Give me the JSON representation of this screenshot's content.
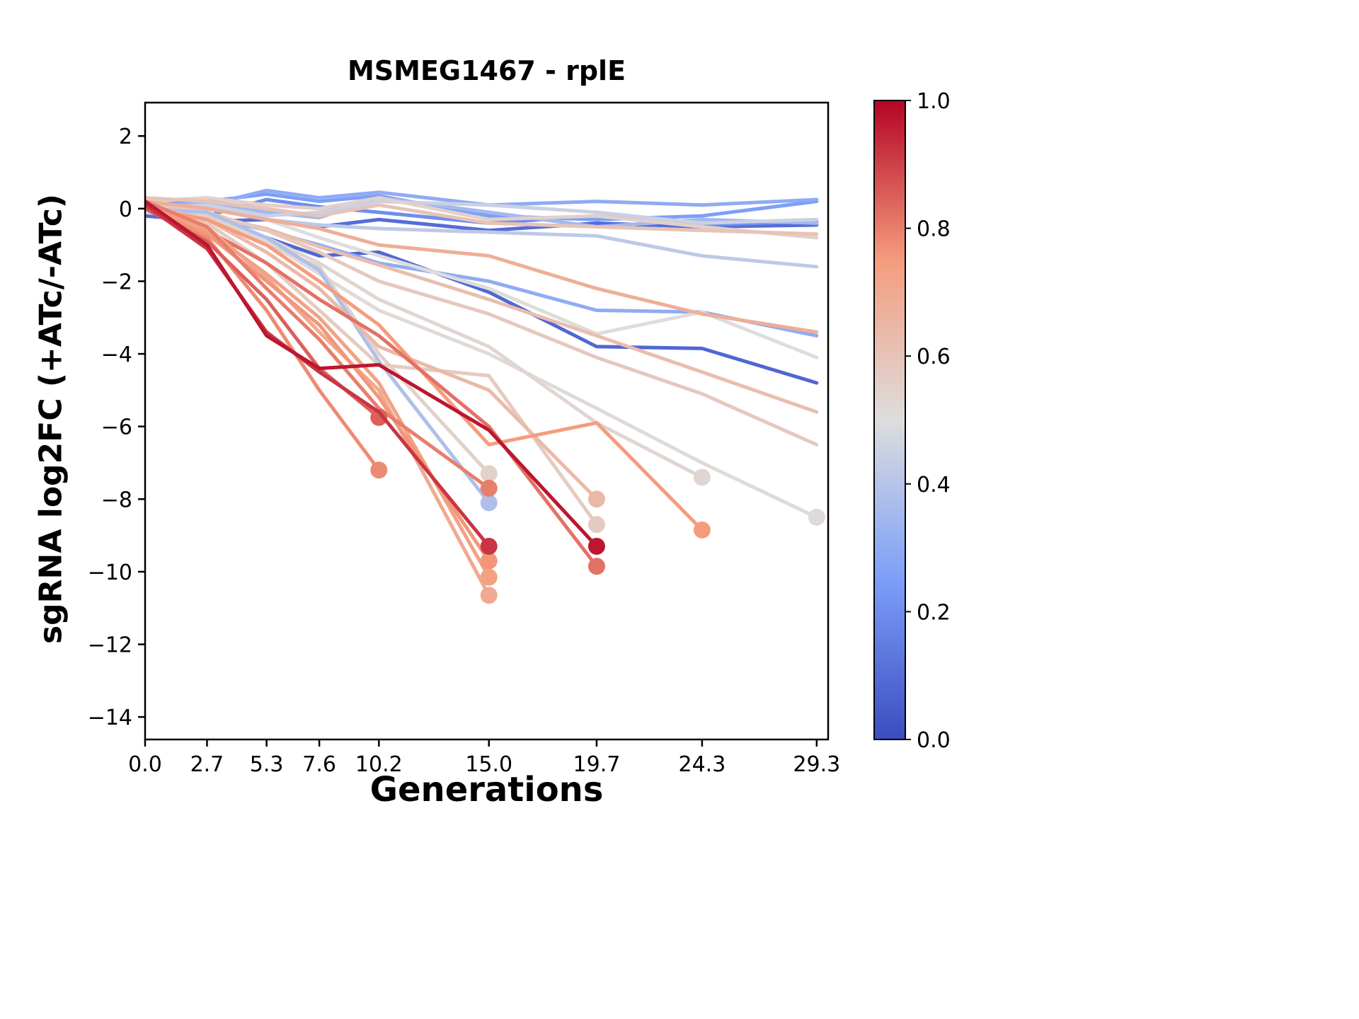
{
  "chart_data": {
    "type": "line",
    "title": "MSMEG1467 - rplE",
    "xlabel": "Generations",
    "ylabel": "sgRNA log2FC (+ATc/-ATc)",
    "xlim": [
      0,
      29.8
    ],
    "ylim": [
      -14.62,
      2.92
    ],
    "grid": false,
    "legend": "none",
    "x_ticks": {
      "values": [
        0.0,
        2.7,
        5.3,
        7.6,
        10.2,
        15.0,
        19.7,
        24.3,
        29.3
      ],
      "labels": [
        "0.0",
        "2.7",
        "5.3",
        "7.6",
        "10.2",
        "15.0",
        "19.7",
        "24.3",
        "29.3"
      ]
    },
    "y_ticks": {
      "values": [
        2,
        0,
        -2,
        -4,
        -6,
        -8,
        -10,
        -12,
        -14
      ],
      "labels": [
        "2",
        "0",
        "−2",
        "−4",
        "−6",
        "−8",
        "−10",
        "−12",
        "−14"
      ]
    },
    "colorbar": {
      "min": 0.0,
      "max": 1.0,
      "ticks": [
        {
          "v": 1.0,
          "label": "1.0"
        },
        {
          "v": 0.8,
          "label": "0.8"
        },
        {
          "v": 0.6,
          "label": "0.6"
        },
        {
          "v": 0.4,
          "label": "0.4"
        },
        {
          "v": 0.2,
          "label": "0.2"
        },
        {
          "v": 0.0,
          "label": "0.0"
        }
      ]
    },
    "colormap_name": "coolwarm",
    "colormap_anchors": [
      [
        0.0,
        "#3b4cc0"
      ],
      [
        0.25,
        "#7c9ff9"
      ],
      [
        0.5,
        "#dddddd"
      ],
      [
        0.75,
        "#f59c7d"
      ],
      [
        1.0,
        "#b40426"
      ]
    ],
    "series": [
      {
        "c": 0.08,
        "marker": false,
        "x": [
          0,
          2.7,
          5.3,
          7.6,
          10.2,
          15.0,
          19.7,
          24.3,
          29.3
        ],
        "y": [
          0.0,
          -0.3,
          -0.8,
          -1.3,
          -1.2,
          -2.3,
          -3.8,
          -3.85,
          -4.8
        ]
      },
      {
        "c": 0.1,
        "marker": false,
        "x": [
          0,
          2.7,
          5.3,
          7.6,
          10.2,
          15.0,
          19.7,
          24.3,
          29.3
        ],
        "y": [
          -0.2,
          -0.35,
          -0.3,
          -0.5,
          -0.3,
          -0.6,
          -0.4,
          -0.5,
          -0.45
        ]
      },
      {
        "c": 0.2,
        "marker": false,
        "x": [
          0,
          2.7,
          5.3,
          7.6,
          10.2,
          15.0,
          19.7,
          24.3,
          29.3
        ],
        "y": [
          0.0,
          -0.2,
          0.25,
          0.05,
          -0.1,
          -0.4,
          -0.2,
          -0.45,
          -0.35
        ]
      },
      {
        "c": 0.25,
        "marker": false,
        "x": [
          0,
          2.7,
          5.3,
          7.6,
          10.2,
          15.0,
          19.7,
          24.3,
          29.3
        ],
        "y": [
          0.1,
          0.2,
          0.4,
          0.2,
          0.35,
          -0.2,
          -0.3,
          -0.2,
          0.2
        ]
      },
      {
        "c": 0.3,
        "marker": false,
        "x": [
          0,
          2.7,
          5.3,
          7.6,
          10.2,
          15.0,
          19.7,
          24.3,
          29.3
        ],
        "y": [
          0.1,
          0.1,
          0.5,
          0.3,
          0.45,
          0.1,
          0.2,
          0.1,
          0.25
        ]
      },
      {
        "c": 0.3,
        "marker": false,
        "x": [
          0,
          2.7,
          5.3,
          7.6,
          10.2,
          15.0,
          19.7,
          24.3,
          29.3
        ],
        "y": [
          0.0,
          -0.2,
          -0.6,
          -1.0,
          -1.5,
          -2.0,
          -2.8,
          -2.85,
          -3.5
        ]
      },
      {
        "c": 0.35,
        "marker": false,
        "x": [
          0,
          2.7,
          5.3,
          7.6,
          10.2,
          15.0,
          19.7,
          24.3,
          29.3
        ],
        "y": [
          0.05,
          0.15,
          -0.1,
          -0.25,
          0.3,
          -0.1,
          -0.5,
          -0.3,
          -0.4
        ]
      },
      {
        "c": 0.42,
        "marker": false,
        "x": [
          0,
          2.7,
          5.3,
          7.6,
          10.2,
          15.0,
          19.7,
          24.3,
          29.3
        ],
        "y": [
          0.0,
          0.05,
          -0.3,
          -0.45,
          -0.55,
          -0.65,
          -0.75,
          -1.3,
          -1.6
        ]
      },
      {
        "c": 0.45,
        "marker": false,
        "x": [
          0,
          2.7,
          5.3,
          7.6,
          10.2,
          15.0,
          19.7,
          24.3,
          29.3
        ],
        "y": [
          0.0,
          0.1,
          -0.2,
          -0.1,
          0.2,
          0.1,
          -0.1,
          -0.4,
          -0.3
        ]
      },
      {
        "c": 0.5,
        "marker": false,
        "x": [
          0,
          2.7,
          5.3,
          7.6,
          10.2,
          15.0,
          19.7,
          24.3,
          29.3
        ],
        "y": [
          0.0,
          0.0,
          -0.3,
          -0.8,
          -1.3,
          -2.2,
          -3.45,
          -2.85,
          -4.1
        ]
      },
      {
        "c": 0.55,
        "marker": false,
        "x": [
          0,
          2.7,
          5.3,
          7.6,
          10.2,
          15.0,
          19.7,
          24.3,
          29.3
        ],
        "y": [
          0.2,
          0.3,
          0.1,
          0.0,
          0.3,
          -0.3,
          -0.2,
          -0.5,
          -0.8
        ]
      },
      {
        "c": 0.6,
        "marker": false,
        "x": [
          0,
          2.7,
          5.3,
          7.6,
          10.2,
          15.0,
          19.7,
          24.3,
          29.3
        ],
        "y": [
          0.3,
          0.2,
          0.0,
          -0.2,
          0.1,
          -0.4,
          -0.5,
          -0.6,
          -0.7
        ]
      },
      {
        "c": 0.68,
        "marker": false,
        "x": [
          0,
          2.7,
          5.3,
          7.6,
          10.2,
          15.0,
          19.7,
          24.3,
          29.3
        ],
        "y": [
          0.2,
          0.0,
          -0.3,
          -0.55,
          -1.0,
          -1.3,
          -2.2,
          -2.9,
          -3.4
        ]
      },
      {
        "c": 0.62,
        "marker": false,
        "x": [
          0,
          2.7,
          5.3,
          7.6,
          10.2,
          15.0,
          19.7,
          24.3,
          29.3
        ],
        "y": [
          0.0,
          -0.2,
          -0.55,
          -1.05,
          -1.55,
          -2.5,
          -3.5,
          -4.5,
          -5.6
        ]
      },
      {
        "c": 0.58,
        "marker": false,
        "x": [
          0,
          2.7,
          5.3,
          7.6,
          10.2,
          15.0,
          19.7,
          24.3,
          29.3
        ],
        "y": [
          0.1,
          -0.1,
          -0.6,
          -1.2,
          -2.0,
          -2.9,
          -4.1,
          -5.1,
          -6.5
        ]
      },
      {
        "c": 0.51,
        "marker": true,
        "x": [
          0,
          2.7,
          5.3,
          7.6,
          10.2,
          15.0,
          19.7,
          24.3,
          29.3
        ],
        "y": [
          -0.1,
          -0.3,
          -0.9,
          -1.8,
          -2.8,
          -4.0,
          -5.5,
          -7.0,
          -8.5
        ]
      },
      {
        "c": 0.53,
        "marker": true,
        "x": [
          0,
          2.7,
          5.3,
          7.6,
          10.2,
          15.0,
          19.7,
          24.3
        ],
        "y": [
          0.0,
          -0.2,
          -0.8,
          -1.5,
          -2.5,
          -3.8,
          -5.9,
          -7.4
        ]
      },
      {
        "c": 0.55,
        "marker": true,
        "x": [
          0,
          2.7,
          5.3,
          7.6,
          10.2,
          15.0
        ],
        "y": [
          0.0,
          -0.2,
          -1.0,
          -1.6,
          -4.0,
          -7.3
        ]
      },
      {
        "c": 0.38,
        "marker": true,
        "x": [
          0,
          2.7,
          5.3,
          7.6,
          10.2,
          15.0
        ],
        "y": [
          0.0,
          -0.1,
          -0.8,
          -1.7,
          -4.2,
          -8.1
        ]
      },
      {
        "c": 0.57,
        "marker": true,
        "x": [
          0,
          2.7,
          5.3,
          7.6,
          10.2,
          15.0,
          19.7
        ],
        "y": [
          0.0,
          -0.4,
          -1.5,
          -2.8,
          -4.3,
          -4.6,
          -8.7
        ]
      },
      {
        "c": 0.64,
        "marker": true,
        "x": [
          0,
          2.7,
          5.3,
          7.6,
          10.2,
          15.0,
          19.7
        ],
        "y": [
          0.1,
          -0.3,
          -1.2,
          -2.2,
          -3.8,
          -5.0,
          -8.0
        ]
      },
      {
        "c": 0.75,
        "marker": true,
        "x": [
          0,
          2.7,
          5.3,
          7.6,
          10.2,
          15.0,
          19.7,
          24.3
        ],
        "y": [
          0.0,
          -0.3,
          -1.0,
          -2.0,
          -3.2,
          -6.5,
          -5.9,
          -8.85
        ]
      },
      {
        "c": 0.82,
        "marker": true,
        "x": [
          0,
          2.7,
          5.3,
          7.6,
          10.2,
          15.0,
          19.7
        ],
        "y": [
          0.0,
          -0.6,
          -1.5,
          -2.5,
          -3.5,
          -6.0,
          -9.85
        ]
      },
      {
        "c": 0.7,
        "marker": true,
        "x": [
          0,
          2.7,
          5.3,
          7.6,
          10.2,
          15.0
        ],
        "y": [
          0.0,
          -0.5,
          -1.9,
          -3.4,
          -5.0,
          -10.65
        ]
      },
      {
        "c": 0.73,
        "marker": true,
        "x": [
          0,
          2.7,
          5.3,
          7.6,
          10.2,
          15.0
        ],
        "y": [
          0.1,
          -0.6,
          -1.8,
          -3.0,
          -4.8,
          -10.15
        ]
      },
      {
        "c": 0.76,
        "marker": true,
        "x": [
          0,
          2.7,
          5.3,
          7.6,
          10.2,
          15.0
        ],
        "y": [
          0.0,
          -0.7,
          -2.0,
          -3.2,
          -5.2,
          -9.7
        ]
      },
      {
        "c": 0.8,
        "marker": true,
        "x": [
          0,
          2.7,
          5.3,
          7.6,
          10.2,
          15.0
        ],
        "y": [
          0.2,
          -0.5,
          -2.2,
          -3.6,
          -5.5,
          -7.7
        ]
      },
      {
        "c": 0.78,
        "marker": true,
        "x": [
          0,
          2.7,
          5.3,
          7.6,
          10.2
        ],
        "y": [
          0.0,
          -0.8,
          -2.8,
          -5.0,
          -7.2
        ]
      },
      {
        "c": 0.85,
        "marker": true,
        "x": [
          0,
          2.7,
          5.3,
          7.6,
          10.2
        ],
        "y": [
          0.0,
          -0.9,
          -2.5,
          -4.4,
          -5.75
        ]
      },
      {
        "c": 0.92,
        "marker": true,
        "x": [
          0,
          2.7,
          5.3,
          7.6,
          10.2,
          15.0
        ],
        "y": [
          0.1,
          -1.1,
          -3.4,
          -4.5,
          -5.6,
          -9.3
        ]
      },
      {
        "c": 0.97,
        "marker": true,
        "x": [
          0,
          2.7,
          5.3,
          7.6,
          10.2,
          15.0,
          19.7
        ],
        "y": [
          0.2,
          -1.0,
          -3.5,
          -4.4,
          -4.3,
          -6.1,
          -9.3
        ]
      }
    ]
  }
}
